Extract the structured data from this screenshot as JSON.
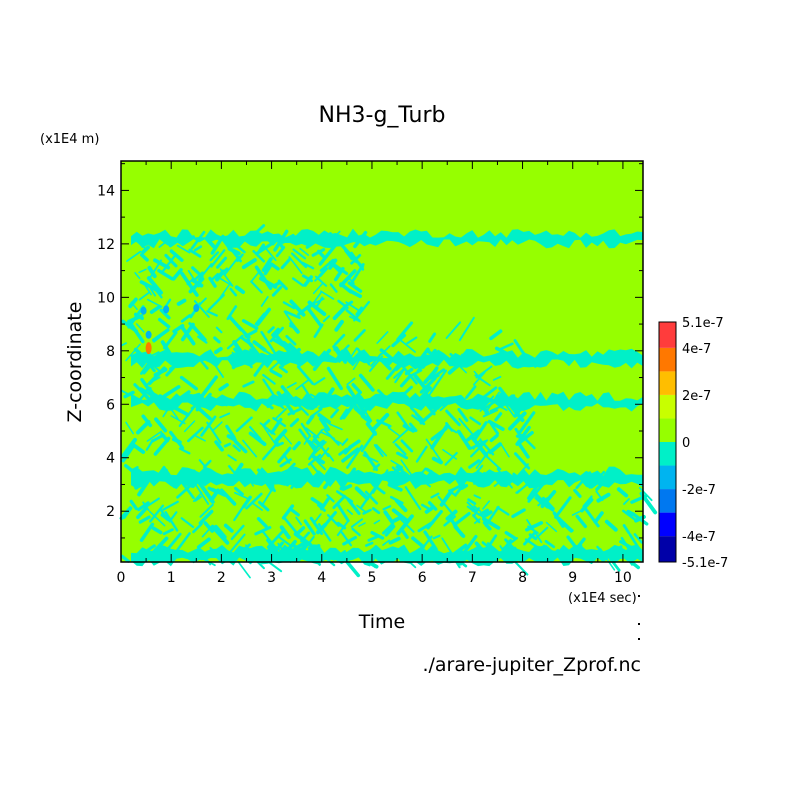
{
  "chart_data": {
    "type": "heatmap",
    "title": "NH3-g_Turb",
    "xlabel": "Time",
    "ylabel": "Z-coordinate",
    "x_unit": "(x1E4 sec)",
    "y_unit": "(x1E4 m)",
    "xlim": [
      0,
      10.4
    ],
    "ylim": [
      0.1,
      15.1
    ],
    "x_ticks": [
      "0",
      "1",
      "2",
      "3",
      "4",
      "5",
      "6",
      "7",
      "8",
      "9",
      "10"
    ],
    "y_ticks": [
      "2",
      "4",
      "6",
      "8",
      "10",
      "12",
      "14"
    ],
    "source_file": "./arare-jupiter_Zprof.nc",
    "colorbar": {
      "labels": [
        "5.1e-7",
        "4e-7",
        "2e-7",
        "0",
        "-2e-7",
        "-4e-7",
        "-5.1e-7"
      ],
      "levels": [
        -5.1e-07,
        -4e-07,
        -3e-07,
        -2e-07,
        -1e-07,
        0,
        1e-07,
        2e-07,
        3e-07,
        4e-07,
        5.1e-07
      ],
      "colors": [
        "#0000a8",
        "#0000ff",
        "#0078f0",
        "#00b4f0",
        "#00f0c8",
        "#96ff00",
        "#c8ff00",
        "#ffbe00",
        "#ff7800",
        "#ff3c3c"
      ]
    },
    "colors": {
      "zero_band": "#96ff00",
      "small_negative": "#00f0c8",
      "negative": "#00b4f0",
      "positive": "#ff7800"
    },
    "features": [
      {
        "kind": "band",
        "t": [
          0.2,
          10.4
        ],
        "z": [
          12.0,
          12.4
        ],
        "value": "small_negative"
      },
      {
        "kind": "band",
        "t": [
          0.2,
          10.4
        ],
        "z": [
          7.5,
          7.9
        ],
        "value": "small_negative"
      },
      {
        "kind": "band",
        "t": [
          0.2,
          10.4
        ],
        "z": [
          3.0,
          3.5
        ],
        "value": "small_negative"
      },
      {
        "kind": "band",
        "t": [
          0.2,
          10.4
        ],
        "z": [
          0.1,
          0.6
        ],
        "value": "small_negative"
      },
      {
        "kind": "band",
        "t": [
          0.2,
          10.4
        ],
        "z": [
          5.9,
          6.3
        ],
        "value": "small_negative"
      },
      {
        "kind": "turbulent_region",
        "t": [
          0.0,
          4.8
        ],
        "z": [
          0.1,
          12.4
        ]
      },
      {
        "kind": "turbulent_region",
        "t": [
          4.8,
          8.0
        ],
        "z": [
          0.1,
          8.5
        ]
      },
      {
        "kind": "turbulent_region",
        "t": [
          8.0,
          10.4
        ],
        "z": [
          0.1,
          3.0
        ]
      },
      {
        "kind": "spot",
        "t": 0.45,
        "z": 9.5,
        "value": "negative"
      },
      {
        "kind": "spot",
        "t": 0.9,
        "z": 9.55,
        "value": "negative"
      },
      {
        "kind": "spot",
        "t": 1.5,
        "z": 9.6,
        "value": "negative"
      },
      {
        "kind": "spot",
        "t": 0.55,
        "z": 8.6,
        "value": "negative"
      },
      {
        "kind": "spot",
        "t": 0.55,
        "z": 8.1,
        "value": "positive"
      }
    ]
  }
}
